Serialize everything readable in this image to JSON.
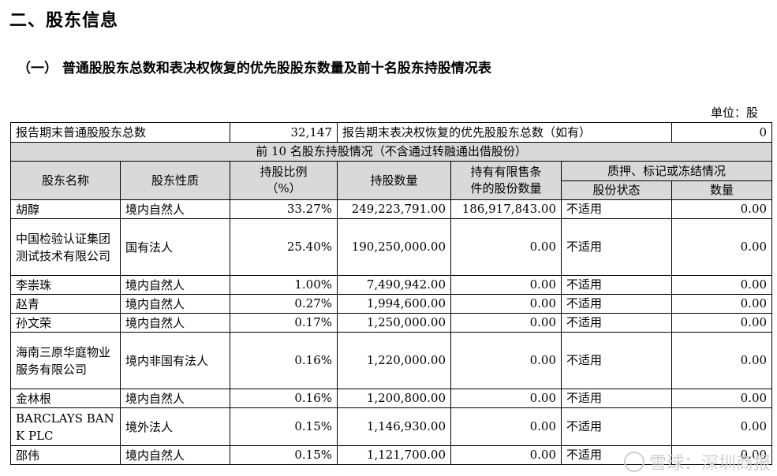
{
  "heading": "二、股东信息",
  "subheading": "（一） 普通股股东总数和表决权恢复的优先股股东数量及前十名股东持股情况表",
  "unit": "单位：股",
  "summary": {
    "label_common": "报告期末普通股股东总数",
    "value_common": "32,147",
    "label_pref": "报告期末表决权恢复的优先股股东总数（如有）",
    "value_pref": "0"
  },
  "section_title": "前 10 名股东持股情况（不含通过转融通出借股份）",
  "headers": {
    "name": "股东名称",
    "nature": "股东性质",
    "ratio_line1": "持股比例",
    "ratio_line2": "（%）",
    "shares": "持股数量",
    "restricted_line1": "持有有限售条",
    "restricted_line2": "件的股份数量",
    "pledge": "质押、标记或冻结情况",
    "pledge_status": "股份状态",
    "pledge_qty": "数量"
  },
  "rows": [
    {
      "name": "胡醇",
      "nature": "境内自然人",
      "ratio": "33.27%",
      "shares": "249,223,791.00",
      "restricted": "186,917,843.00",
      "status": "不适用",
      "qty": "0.00"
    },
    {
      "name": "中国检验认证集团测试技术有限公司",
      "nature": "国有法人",
      "ratio": "25.40%",
      "shares": "190,250,000.00",
      "restricted": "0.00",
      "status": "不适用",
      "qty": "0.00"
    },
    {
      "name": "李崇珠",
      "nature": "境内自然人",
      "ratio": "1.00%",
      "shares": "7,490,942.00",
      "restricted": "0.00",
      "status": "不适用",
      "qty": "0.00"
    },
    {
      "name": "赵青",
      "nature": "境内自然人",
      "ratio": "0.27%",
      "shares": "1,994,600.00",
      "restricted": "0.00",
      "status": "不适用",
      "qty": "0.00"
    },
    {
      "name": "孙文荣",
      "nature": "境内自然人",
      "ratio": "0.17%",
      "shares": "1,250,000.00",
      "restricted": "0.00",
      "status": "不适用",
      "qty": "0.00"
    },
    {
      "name": "海南三原华庭物业服务有限公司",
      "nature": "境内非国有法人",
      "ratio": "0.16%",
      "shares": "1,220,000.00",
      "restricted": "0.00",
      "status": "不适用",
      "qty": "0.00"
    },
    {
      "name": "金林根",
      "nature": "境内自然人",
      "ratio": "0.16%",
      "shares": "1,200,800.00",
      "restricted": "0.00",
      "status": "不适用",
      "qty": "0.00"
    },
    {
      "name": "BARCLAYS BANK PLC",
      "nature": "境外法人",
      "ratio": "0.15%",
      "shares": "1,146,930.00",
      "restricted": "0.00",
      "status": "不适用",
      "qty": "0.00"
    },
    {
      "name": "邵伟",
      "nature": "境内自然人",
      "ratio": "0.15%",
      "shares": "1,121,700.00",
      "restricted": "0.00",
      "status": "不适用",
      "qty": "0.00"
    }
  ],
  "watermark": "雪球：深圳商报"
}
